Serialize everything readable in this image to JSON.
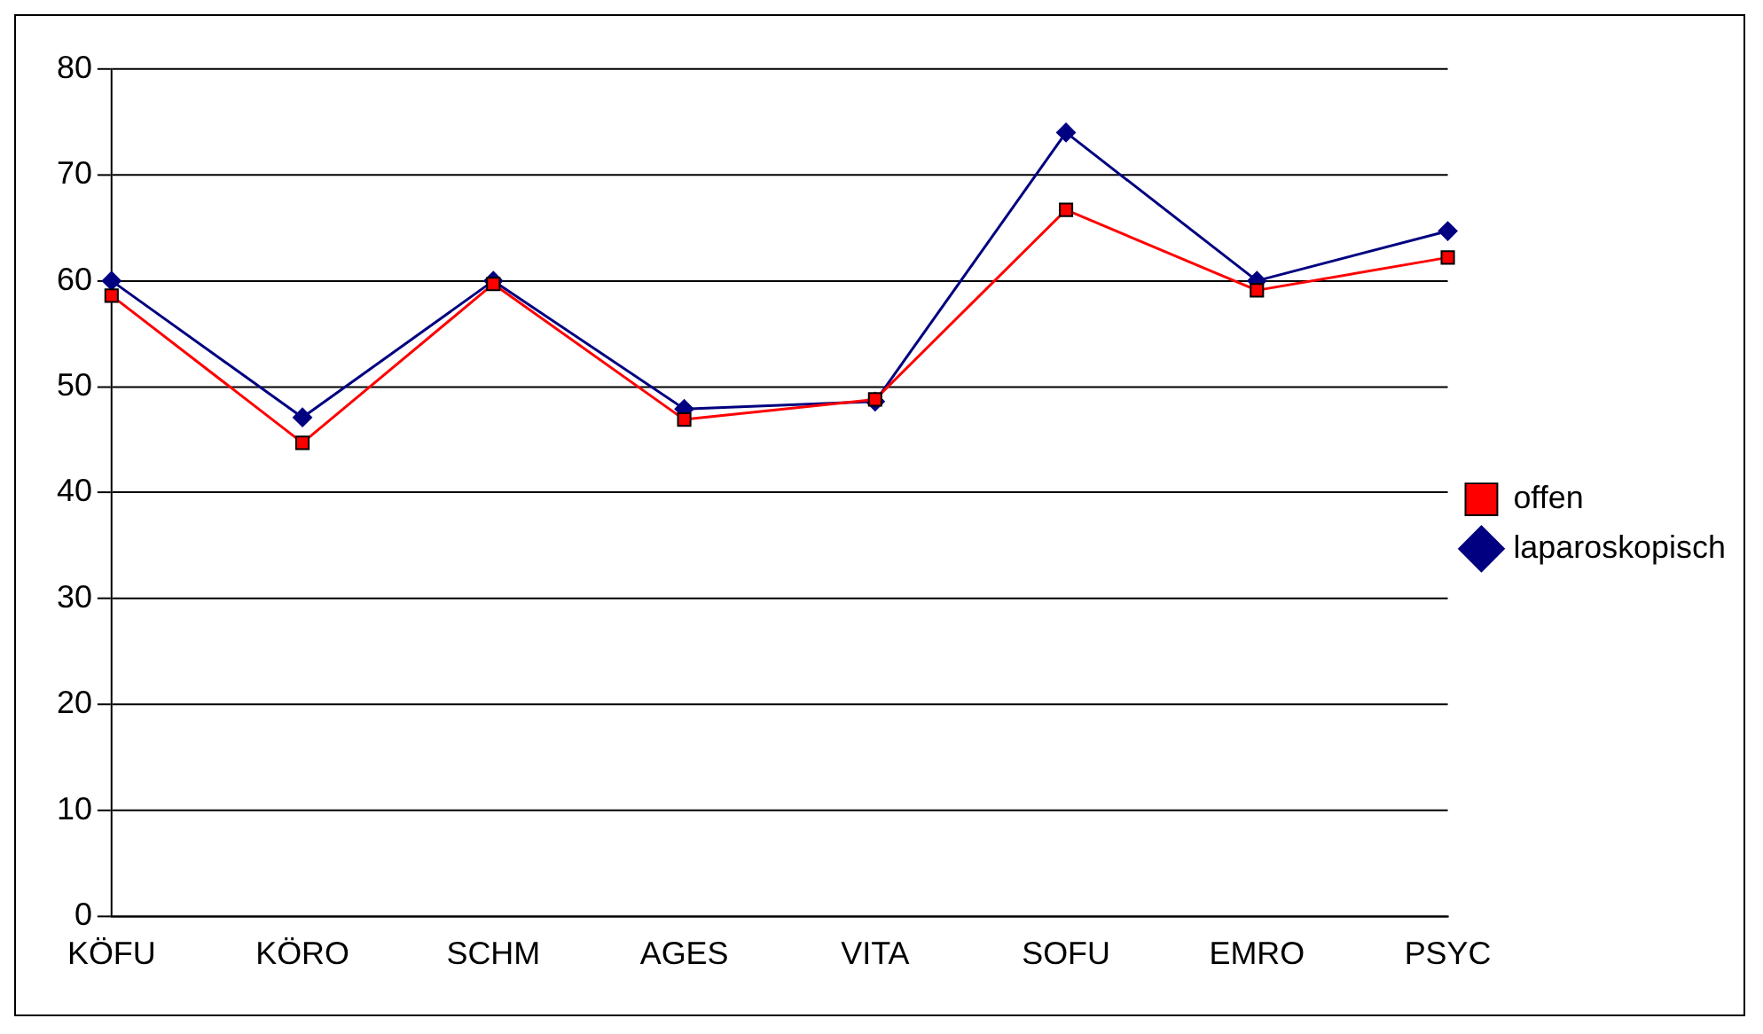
{
  "chart_data": {
    "type": "line",
    "categories": [
      "KÖFU",
      "KÖRO",
      "SCHM",
      "AGES",
      "VITA",
      "SOFU",
      "EMRO",
      "PSYC"
    ],
    "series": [
      {
        "name": "laparoskopisch",
        "color": "#000080",
        "marker": "diamond",
        "values": [
          60,
          47.1,
          60,
          47.9,
          48.6,
          74,
          60,
          64.7
        ]
      },
      {
        "name": "offen",
        "color": "#ff0000",
        "marker": "square",
        "values": [
          58.6,
          44.7,
          59.7,
          46.9,
          48.8,
          66.7,
          59.1,
          62.2
        ]
      }
    ],
    "ylim": [
      0,
      80
    ],
    "yticks": [
      0,
      10,
      20,
      30,
      40,
      50,
      60,
      70,
      80
    ],
    "grid": "y",
    "legend": "right",
    "line_style": "solid"
  }
}
